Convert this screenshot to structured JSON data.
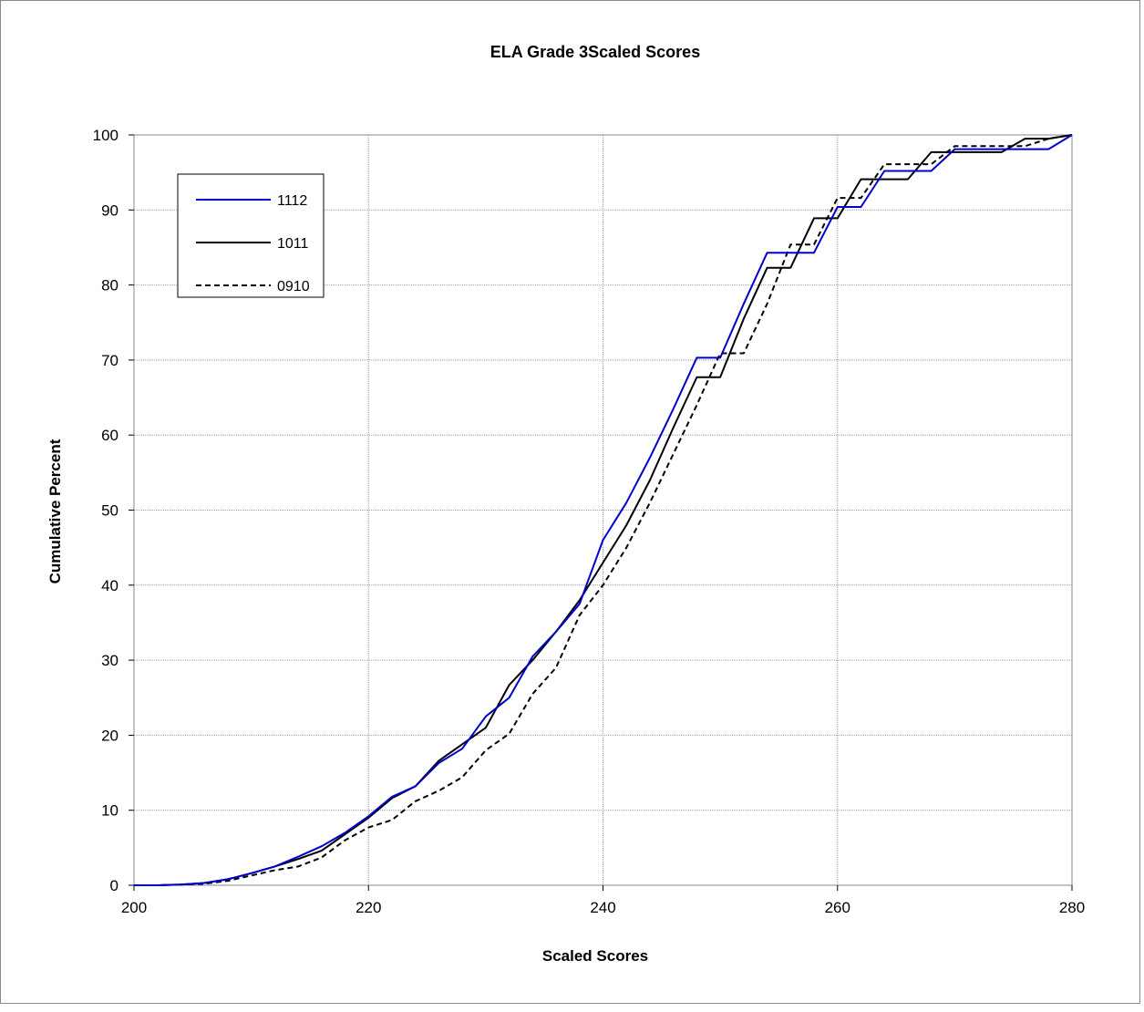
{
  "chart_data": {
    "type": "line",
    "title": "ELA  Grade 3Scaled Scores",
    "xlabel": "Scaled Scores",
    "ylabel": "Cumulative Percent",
    "xlim": [
      200,
      280
    ],
    "ylim": [
      0,
      100
    ],
    "x_ticks": [
      200,
      220,
      240,
      260,
      280
    ],
    "y_ticks": [
      0,
      10,
      20,
      30,
      40,
      50,
      60,
      70,
      80,
      90,
      100
    ],
    "grid": true,
    "legend_position": "top-left",
    "series": [
      {
        "name": "1112",
        "color": "#0000cc",
        "dash": "solid",
        "points": [
          [
            200,
            0
          ],
          [
            202,
            0
          ],
          [
            204,
            0.1
          ],
          [
            206,
            0.3
          ],
          [
            208,
            0.8
          ],
          [
            210,
            1.6
          ],
          [
            212,
            2.5
          ],
          [
            214,
            3.8
          ],
          [
            216,
            5.2
          ],
          [
            218,
            7.0
          ],
          [
            220,
            9.2
          ],
          [
            222,
            11.8
          ],
          [
            224,
            13.2
          ],
          [
            226,
            16.3
          ],
          [
            228,
            18.2
          ],
          [
            230,
            22.5
          ],
          [
            232,
            25.0
          ],
          [
            234,
            30.5
          ],
          [
            236,
            33.8
          ],
          [
            238,
            37.5
          ],
          [
            240,
            46.0
          ],
          [
            242,
            51.0
          ],
          [
            244,
            57.0
          ],
          [
            246,
            63.5
          ],
          [
            248,
            70.3
          ],
          [
            250,
            70.3
          ],
          [
            252,
            77.5
          ],
          [
            254,
            84.3
          ],
          [
            256,
            84.3
          ],
          [
            258,
            84.3
          ],
          [
            260,
            90.4
          ],
          [
            262,
            90.4
          ],
          [
            264,
            95.2
          ],
          [
            266,
            95.2
          ],
          [
            268,
            95.2
          ],
          [
            270,
            98.1
          ],
          [
            272,
            98.1
          ],
          [
            274,
            98.1
          ],
          [
            276,
            98.1
          ],
          [
            278,
            98.1
          ],
          [
            280,
            100
          ]
        ]
      },
      {
        "name": "1011",
        "color": "#000000",
        "dash": "solid",
        "points": [
          [
            200,
            0
          ],
          [
            202,
            0
          ],
          [
            204,
            0.1
          ],
          [
            206,
            0.3
          ],
          [
            208,
            0.8
          ],
          [
            210,
            1.6
          ],
          [
            212,
            2.5
          ],
          [
            214,
            3.5
          ],
          [
            216,
            4.6
          ],
          [
            218,
            6.8
          ],
          [
            220,
            9.0
          ],
          [
            222,
            11.6
          ],
          [
            224,
            13.2
          ],
          [
            226,
            16.6
          ],
          [
            228,
            18.8
          ],
          [
            230,
            21.0
          ],
          [
            232,
            26.7
          ],
          [
            234,
            30.0
          ],
          [
            236,
            33.8
          ],
          [
            238,
            38.0
          ],
          [
            240,
            43.0
          ],
          [
            242,
            48.0
          ],
          [
            244,
            54.0
          ],
          [
            246,
            61.0
          ],
          [
            248,
            67.7
          ],
          [
            250,
            67.7
          ],
          [
            252,
            75.5
          ],
          [
            254,
            82.3
          ],
          [
            256,
            82.3
          ],
          [
            258,
            88.9
          ],
          [
            260,
            88.9
          ],
          [
            262,
            94.1
          ],
          [
            264,
            94.1
          ],
          [
            266,
            94.1
          ],
          [
            268,
            97.7
          ],
          [
            270,
            97.7
          ],
          [
            272,
            97.7
          ],
          [
            274,
            97.7
          ],
          [
            276,
            99.5
          ],
          [
            278,
            99.5
          ],
          [
            280,
            100
          ]
        ]
      },
      {
        "name": "0910",
        "color": "#000000",
        "dash": "dashed",
        "points": [
          [
            200,
            0
          ],
          [
            202,
            0
          ],
          [
            204,
            0.1
          ],
          [
            206,
            0.2
          ],
          [
            208,
            0.6
          ],
          [
            210,
            1.3
          ],
          [
            212,
            2.0
          ],
          [
            214,
            2.5
          ],
          [
            216,
            3.7
          ],
          [
            218,
            6.0
          ],
          [
            220,
            7.7
          ],
          [
            222,
            8.7
          ],
          [
            224,
            11.2
          ],
          [
            226,
            12.6
          ],
          [
            228,
            14.4
          ],
          [
            230,
            18.0
          ],
          [
            232,
            20.2
          ],
          [
            234,
            25.5
          ],
          [
            236,
            29.0
          ],
          [
            238,
            36.0
          ],
          [
            240,
            40.0
          ],
          [
            242,
            45.0
          ],
          [
            244,
            51.0
          ],
          [
            246,
            57.5
          ],
          [
            248,
            64.0
          ],
          [
            250,
            70.9
          ],
          [
            252,
            70.9
          ],
          [
            254,
            77.5
          ],
          [
            256,
            85.4
          ],
          [
            258,
            85.4
          ],
          [
            260,
            91.6
          ],
          [
            262,
            91.6
          ],
          [
            264,
            96.1
          ],
          [
            266,
            96.1
          ],
          [
            268,
            96.1
          ],
          [
            270,
            98.5
          ],
          [
            272,
            98.5
          ],
          [
            274,
            98.5
          ],
          [
            276,
            98.5
          ],
          [
            278,
            99.5
          ],
          [
            280,
            100
          ]
        ]
      }
    ]
  }
}
